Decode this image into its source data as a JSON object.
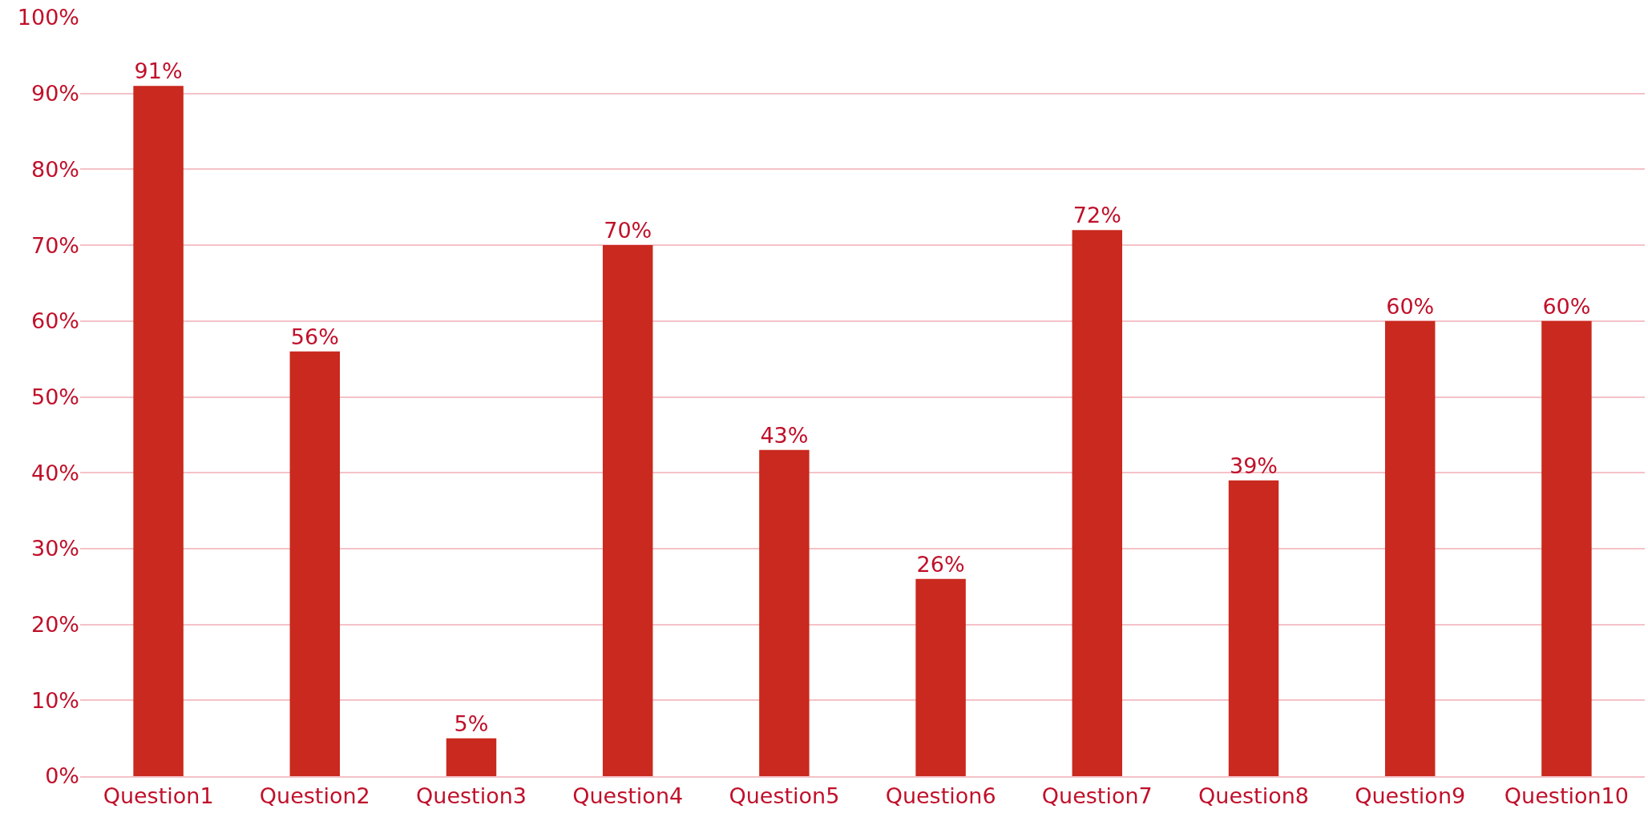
{
  "chart_data": {
    "type": "bar",
    "categories": [
      "Question1",
      "Question2",
      "Question3",
      "Question4",
      "Question5",
      "Question6",
      "Question7",
      "Question8",
      "Question9",
      "Question10"
    ],
    "values": [
      91,
      56,
      5,
      70,
      43,
      26,
      72,
      39,
      60,
      60
    ],
    "value_labels": [
      "91%",
      "56%",
      "5%",
      "70%",
      "43%",
      "26%",
      "72%",
      "39%",
      "60%",
      "60%"
    ],
    "color": "#c9291e",
    "ylim": [
      0,
      100
    ],
    "yticks": [
      {
        "value": 0,
        "label": "0%"
      },
      {
        "value": 10,
        "label": "10%"
      },
      {
        "value": 20,
        "label": "20%"
      },
      {
        "value": 30,
        "label": "30%"
      },
      {
        "value": 40,
        "label": "40%"
      },
      {
        "value": 50,
        "label": "50%"
      },
      {
        "value": 60,
        "label": "60%"
      },
      {
        "value": 70,
        "label": "70%"
      },
      {
        "value": 80,
        "label": "80%"
      },
      {
        "value": 90,
        "label": "90%"
      },
      {
        "value": 100,
        "label": "100%"
      }
    ],
    "grid": "y"
  }
}
